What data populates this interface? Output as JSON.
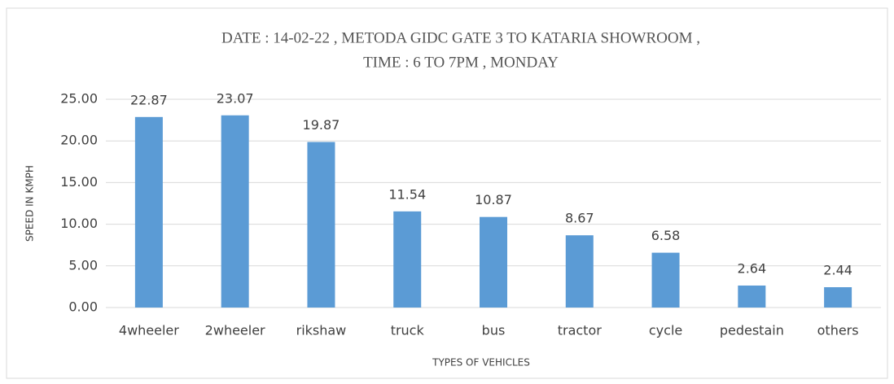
{
  "chart_data": {
    "type": "bar",
    "title": [
      "DATE : 14-02-22 , METODA GIDC GATE 3 TO KATARIA SHOWROOM ,",
      "TIME : 6 TO 7PM , MONDAY"
    ],
    "x_label": "TYPES OF VEHICLES",
    "y_label": "SPEED IN KMPH",
    "categories": [
      "4wheeler",
      "2wheeler",
      "rikshaw",
      "truck",
      "bus",
      "tractor",
      "cycle",
      "pedestain",
      "others"
    ],
    "values": [
      22.87,
      23.07,
      19.87,
      11.54,
      10.87,
      8.67,
      6.58,
      2.64,
      2.44
    ],
    "color": "#5b9bd5",
    "ylim": [
      0,
      25
    ],
    "yticks": [
      {
        "value": 0,
        "label": "0.00"
      },
      {
        "value": 5,
        "label": "5.00"
      },
      {
        "value": 10,
        "label": "10.00"
      },
      {
        "value": 15,
        "label": "15.00"
      },
      {
        "value": 20,
        "label": "20.00"
      },
      {
        "value": 25,
        "label": "25.00"
      }
    ],
    "grid": true
  }
}
